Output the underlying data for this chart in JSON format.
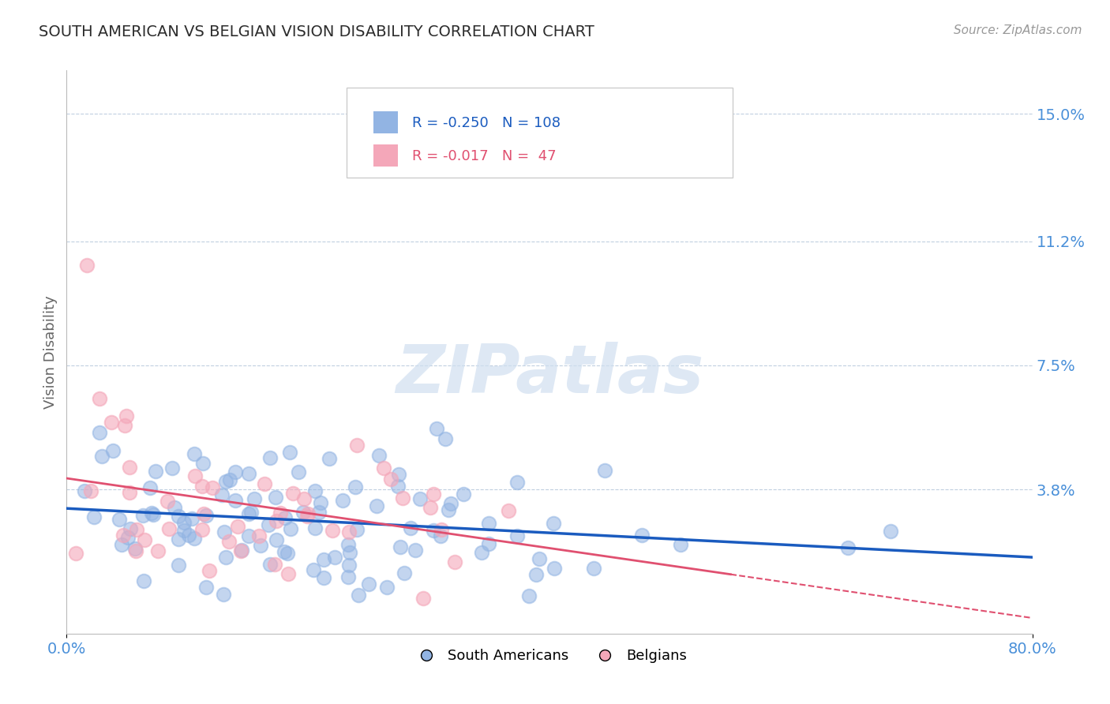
{
  "title": "SOUTH AMERICAN VS BELGIAN VISION DISABILITY CORRELATION CHART",
  "source": "Source: ZipAtlas.com",
  "ylabel": "Vision Disability",
  "xlim": [
    0.0,
    0.8
  ],
  "ylim": [
    -0.005,
    0.163
  ],
  "yticks": [
    0.038,
    0.075,
    0.112,
    0.15
  ],
  "ytick_labels": [
    "3.8%",
    "7.5%",
    "11.2%",
    "15.0%"
  ],
  "xticks": [
    0.0,
    0.8
  ],
  "xtick_labels": [
    "0.0%",
    "80.0%"
  ],
  "sa_R": -0.25,
  "sa_N": 108,
  "be_R": -0.017,
  "be_N": 47,
  "sa_color": "#92b4e3",
  "be_color": "#f4a7b9",
  "sa_line_color": "#1a5bbf",
  "be_line_color": "#e05070",
  "legend_label_sa": "South Americans",
  "legend_label_be": "Belgians",
  "watermark": "ZIPatlas",
  "background_color": "#ffffff",
  "grid_color": "#c0cfe0",
  "title_color": "#2c2c2c",
  "axis_label_color": "#666666",
  "tick_color": "#4a90d9",
  "source_color": "#999999"
}
